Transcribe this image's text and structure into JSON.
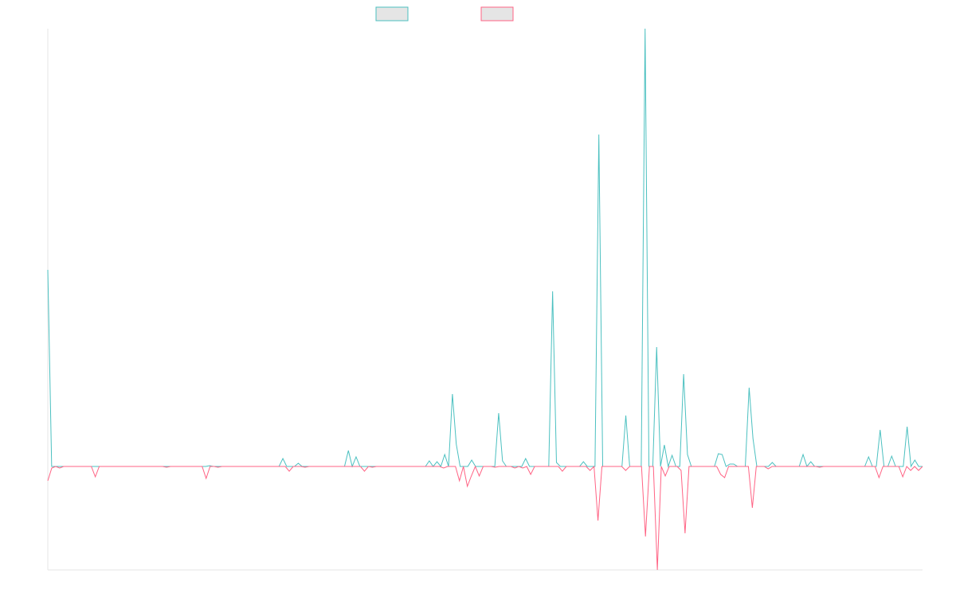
{
  "chart_data": {
    "type": "line",
    "title": "",
    "xlabel": "",
    "ylabel": "",
    "ylim": [
      -130,
      550
    ],
    "grid": false,
    "legend_position": "top-center",
    "colors": {
      "series_a": "#4bc0c0",
      "series_b": "#ff6384",
      "legend_fill": "#e5e5e5",
      "axis": "#e6e6e6"
    },
    "legend": [
      {
        "name": "",
        "color": "#4bc0c0"
      },
      {
        "name": "",
        "color": "#ff6384"
      }
    ],
    "series": [
      {
        "name": "",
        "color": "#4bc0c0",
        "values": [
          247,
          0,
          0,
          0,
          0,
          0,
          0,
          0,
          0,
          0,
          0,
          0,
          0,
          0,
          0,
          0,
          0,
          0,
          0,
          0,
          0,
          0,
          0,
          0,
          0,
          0,
          0,
          0,
          0,
          0,
          0,
          0,
          0,
          0,
          0,
          0,
          0,
          0,
          0,
          0,
          0,
          0,
          1,
          0,
          0,
          0,
          0,
          0,
          0,
          0,
          0,
          0,
          0,
          0,
          0,
          0,
          0,
          0,
          0,
          0,
          0,
          10,
          0,
          0,
          0,
          4,
          0,
          0,
          0,
          0,
          0,
          0,
          0,
          0,
          0,
          0,
          0,
          0,
          20,
          0,
          12,
          0,
          0,
          0,
          0,
          0,
          0,
          0,
          0,
          0,
          0,
          0,
          0,
          0,
          0,
          0,
          0,
          0,
          0,
          7,
          0,
          6,
          0,
          15,
          0,
          91,
          28,
          0,
          0,
          0,
          8,
          0,
          0,
          0,
          0,
          0,
          0,
          67,
          7,
          0,
          0,
          0,
          0,
          0,
          10,
          0,
          0,
          0,
          0,
          0,
          0,
          220,
          5,
          0,
          0,
          0,
          0,
          0,
          0,
          6,
          0,
          0,
          0,
          417,
          0,
          0,
          0,
          0,
          0,
          0,
          64,
          0,
          0,
          0,
          0,
          550,
          0,
          0,
          150,
          0,
          27,
          0,
          14,
          0,
          0,
          116,
          15,
          0,
          0,
          0,
          0,
          0,
          0,
          0,
          16,
          15,
          0,
          3,
          3,
          0,
          0,
          0,
          99,
          35,
          0,
          0,
          0,
          0,
          5,
          0,
          0,
          0,
          0,
          0,
          0,
          0,
          15,
          0,
          6,
          0,
          0,
          0,
          0,
          0,
          0,
          0,
          0,
          0,
          0,
          0,
          0,
          0,
          0,
          12,
          0,
          0,
          46,
          0,
          0,
          13,
          0,
          0,
          0,
          50,
          0,
          8,
          0,
          0
        ]
      },
      {
        "name": "",
        "color": "#ff6384",
        "values": [
          -18,
          -2,
          0,
          -2,
          0,
          0,
          0,
          0,
          0,
          0,
          0,
          0,
          -13,
          0,
          0,
          0,
          0,
          0,
          0,
          0,
          0,
          0,
          0,
          0,
          0,
          0,
          0,
          0,
          0,
          0,
          -1,
          0,
          0,
          0,
          0,
          0,
          0,
          0,
          0,
          0,
          -15,
          0,
          0,
          -1,
          0,
          0,
          0,
          0,
          0,
          0,
          0,
          0,
          0,
          0,
          0,
          0,
          0,
          0,
          0,
          0,
          0,
          -6,
          0,
          0,
          0,
          -1,
          0,
          0,
          0,
          0,
          0,
          0,
          0,
          0,
          0,
          0,
          0,
          0,
          0,
          0,
          -6,
          0,
          -1,
          0,
          0,
          0,
          0,
          0,
          0,
          0,
          0,
          0,
          0,
          0,
          0,
          0,
          0,
          0,
          0,
          0,
          -2,
          0,
          0,
          0,
          -18,
          0,
          -25,
          -12,
          0,
          -12,
          0,
          0,
          0,
          -1,
          0,
          0,
          0,
          0,
          -2,
          0,
          -2,
          0,
          -10,
          0,
          0,
          0,
          0,
          0,
          0,
          0,
          -6,
          0,
          0,
          0,
          0,
          0,
          0,
          -5,
          0,
          -68,
          0,
          0,
          0,
          0,
          0,
          0,
          -5,
          0,
          0,
          0,
          0,
          -88,
          0,
          0,
          -130,
          0,
          -12,
          0,
          0,
          0,
          -5,
          -84,
          0,
          0,
          0,
          0,
          0,
          0,
          0,
          0,
          -10,
          -14,
          0,
          0,
          0,
          0,
          0,
          0,
          -52,
          0,
          0,
          0,
          -3,
          0,
          0,
          0,
          0,
          0,
          0,
          0,
          0,
          0,
          0,
          0,
          0,
          -1,
          0,
          0,
          0,
          0,
          0,
          0,
          0,
          0,
          0,
          0,
          0,
          0,
          0,
          0,
          -14,
          0,
          0,
          0,
          0,
          0,
          -13,
          0,
          -5,
          0,
          -5,
          0
        ]
      }
    ]
  }
}
